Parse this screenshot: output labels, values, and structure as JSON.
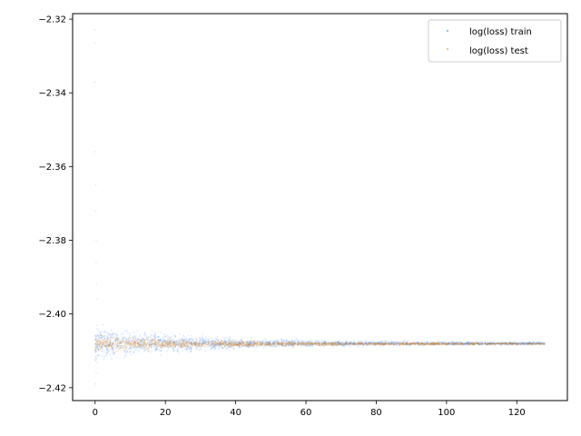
{
  "chart_data": {
    "type": "scatter",
    "title": "",
    "xlabel": "",
    "ylabel": "",
    "xlim": [
      -6.4,
      134.4
    ],
    "ylim": [
      -2.4235,
      -2.3185
    ],
    "x_ticks": [
      0,
      20,
      40,
      60,
      80,
      100,
      120
    ],
    "x_tick_labels": [
      "0",
      "20",
      "40",
      "60",
      "80",
      "100",
      "120"
    ],
    "y_ticks": [
      -2.42,
      -2.4,
      -2.38,
      -2.36,
      -2.34,
      -2.32
    ],
    "y_tick_labels": [
      "−2.42",
      "−2.40",
      "−2.38",
      "−2.36",
      "−2.34",
      "−2.32"
    ],
    "grid": false,
    "legend_position": "top-right",
    "series": [
      {
        "name": "log(loss) train",
        "color": "#1f77b4",
        "marker_color": "#2b7bff",
        "x_range": [
          0,
          128
        ],
        "center": -2.408,
        "spread_start": 0.004,
        "spread_end": 0.0003,
        "outliers": [
          {
            "x": 0.0,
            "y": -2.323
          },
          {
            "x": 0.0,
            "y": -2.3265
          },
          {
            "x": 0.0,
            "y": -2.337
          },
          {
            "x": 0.0,
            "y": -2.356
          },
          {
            "x": 0.2,
            "y": -2.365
          },
          {
            "x": 0.2,
            "y": -2.372
          },
          {
            "x": 0.3,
            "y": -2.38
          },
          {
            "x": 0.3,
            "y": -2.386
          },
          {
            "x": 0.4,
            "y": -2.392
          },
          {
            "x": 0.5,
            "y": -2.396
          },
          {
            "x": 0.1,
            "y": -2.419
          },
          {
            "x": 0.3,
            "y": -2.416
          }
        ]
      },
      {
        "name": "log(loss) test",
        "color": "#ff7f0e",
        "marker_color": "#e08a1e",
        "x_range": [
          0,
          128
        ],
        "center": -2.4081,
        "spread_start": 0.002,
        "spread_end": 0.0002,
        "outliers": []
      }
    ]
  }
}
